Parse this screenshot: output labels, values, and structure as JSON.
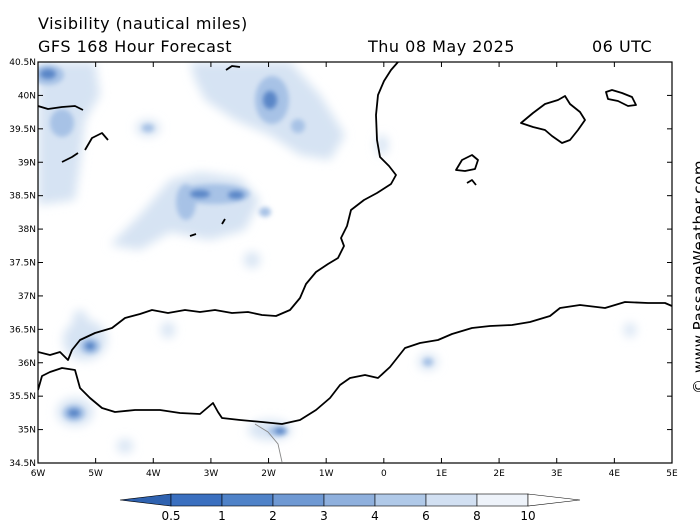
{
  "header": {
    "title": "Visibility (nautical miles)",
    "subtitle": "GFS 168 Hour Forecast",
    "date": "Thu 08 May 2025",
    "time": "06 UTC"
  },
  "map": {
    "lat_range": [
      34.5,
      40.5
    ],
    "lon_range": [
      -6,
      5
    ],
    "lat_ticks": [
      "40.5N",
      "40N",
      "39.5N",
      "39N",
      "38.5N",
      "38N",
      "37.5N",
      "37N",
      "36.5N",
      "36N",
      "35.5N",
      "35N",
      "34.5N"
    ],
    "lon_ticks": [
      "6W",
      "5W",
      "4W",
      "3W",
      "2W",
      "1W",
      "0",
      "1E",
      "2E",
      "3E",
      "4E",
      "5E"
    ]
  },
  "legend": {
    "labels": [
      "0.5",
      "1",
      "2",
      "3",
      "4",
      "6",
      "8",
      "10"
    ],
    "colors": [
      "#3a6fbf",
      "#4f82c8",
      "#6f99d3",
      "#8fb0dd",
      "#b0c9e8",
      "#d2e0f2",
      "#eef3fa",
      "#ffffff"
    ]
  },
  "credit": "© www.PassageWeather.com"
}
